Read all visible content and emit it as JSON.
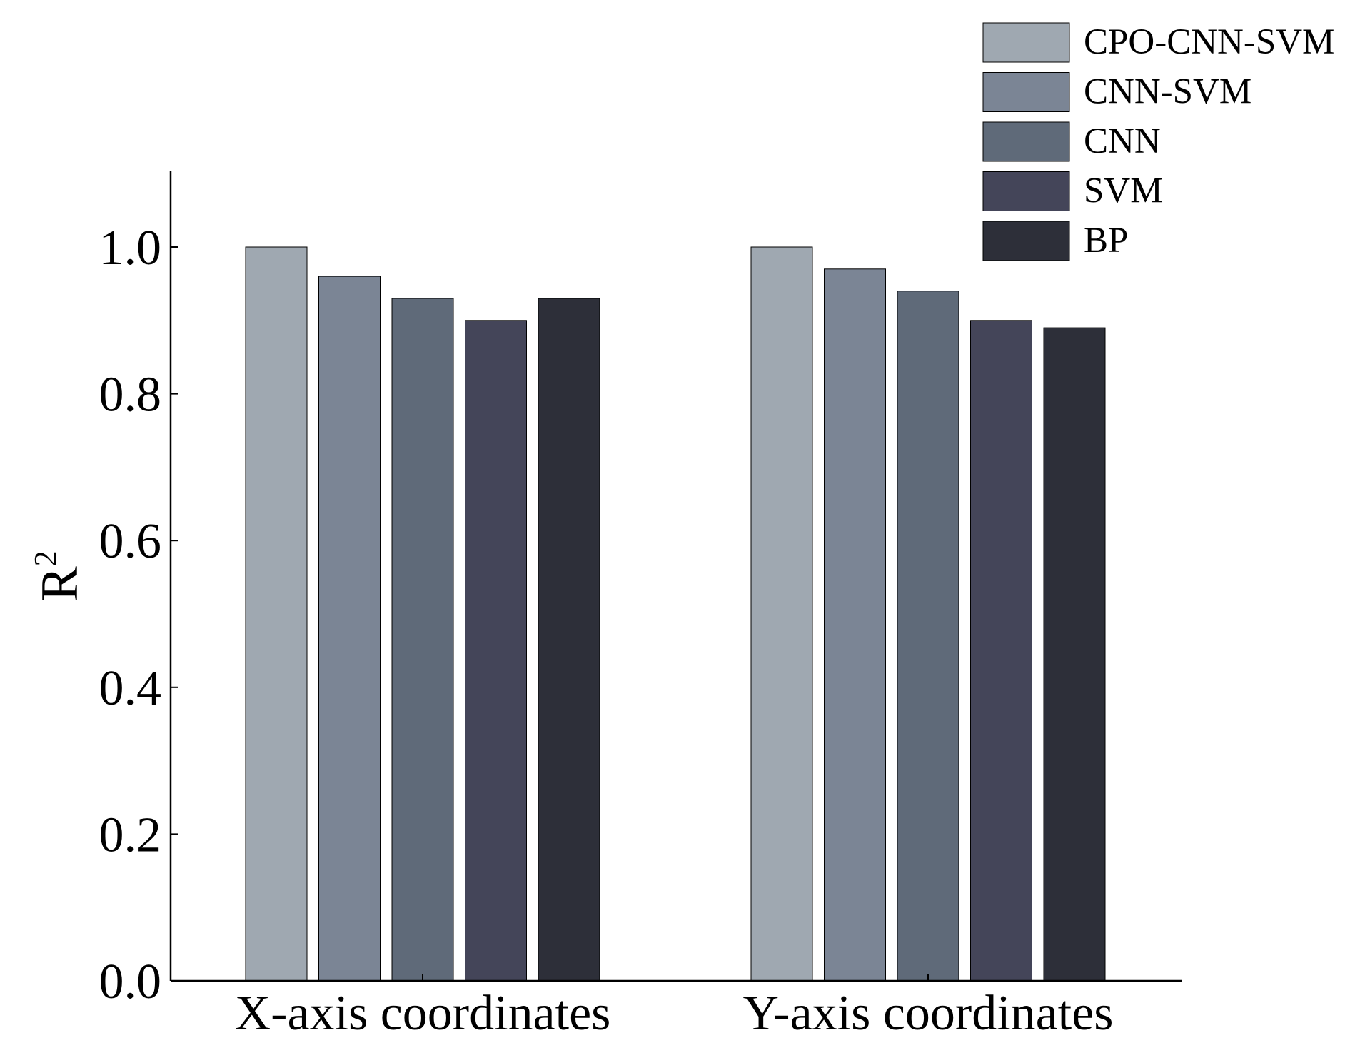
{
  "chart_data": {
    "type": "bar",
    "title": "",
    "xlabel": "",
    "ylabel": "R",
    "ylabel_superscript": "2",
    "categories": [
      "X-axis coordinates",
      "Y-axis coordinates"
    ],
    "series": [
      {
        "name": "CPO-CNN-SVM",
        "values": [
          1.0,
          1.0
        ],
        "color": "#9fa8b1"
      },
      {
        "name": "CNN-SVM",
        "values": [
          0.96,
          0.97
        ],
        "color": "#7b8595"
      },
      {
        "name": "CNN",
        "values": [
          0.93,
          0.94
        ],
        "color": "#5f6a79"
      },
      {
        "name": "SVM",
        "values": [
          0.9,
          0.9
        ],
        "color": "#444559"
      },
      {
        "name": "BP",
        "values": [
          0.93,
          0.89
        ],
        "color": "#2d2f39"
      }
    ],
    "ylim": [
      0,
      1.1
    ],
    "yticks": [
      "0.0",
      "0.2",
      "0.4",
      "0.6",
      "0.8",
      "1.0"
    ],
    "grid": false,
    "legend_position": "top-right"
  }
}
